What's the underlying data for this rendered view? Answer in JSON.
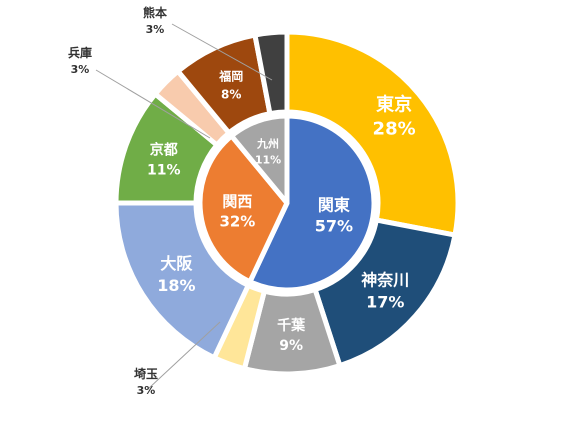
{
  "chart_data": {
    "type": "pie",
    "title": "",
    "outer": {
      "slices": [
        {
          "label": "東京",
          "value": 28,
          "pct": "28%",
          "color": "#FFC000",
          "text_color": "#ffffff"
        },
        {
          "label": "神奈川",
          "value": 17,
          "pct": "17%",
          "color": "#1F4E79",
          "text_color": "#ffffff"
        },
        {
          "label": "千葉",
          "value": 9,
          "pct": "9%",
          "color": "#A5A5A5",
          "text_color": "#ffffff"
        },
        {
          "label": "埼玉",
          "value": 3,
          "pct": "3%",
          "color": "#FFE699",
          "text_color": "#333333"
        },
        {
          "label": "大阪",
          "value": 18,
          "pct": "18%",
          "color": "#8FAADC",
          "text_color": "#ffffff"
        },
        {
          "label": "京都",
          "value": 11,
          "pct": "11%",
          "color": "#70AD47",
          "text_color": "#ffffff"
        },
        {
          "label": "兵庫",
          "value": 3,
          "pct": "3%",
          "color": "#F8CBAD",
          "text_color": "#333333"
        },
        {
          "label": "福岡",
          "value": 8,
          "pct": "8%",
          "color": "#9E480E",
          "text_color": "#ffffff"
        },
        {
          "label": "熊本",
          "value": 3,
          "pct": "3%",
          "color": "#404040",
          "text_color": "#333333"
        }
      ]
    },
    "inner": {
      "slices": [
        {
          "label": "関東",
          "value": 57,
          "pct": "57%",
          "color": "#4472C4",
          "text_color": "#ffffff"
        },
        {
          "label": "関西",
          "value": 32,
          "pct": "32%",
          "color": "#ED7D31",
          "text_color": "#ffffff"
        },
        {
          "label": "九州",
          "value": 11,
          "pct": "11%",
          "color": "#A5A5A5",
          "text_color": "#ffffff"
        }
      ]
    }
  }
}
